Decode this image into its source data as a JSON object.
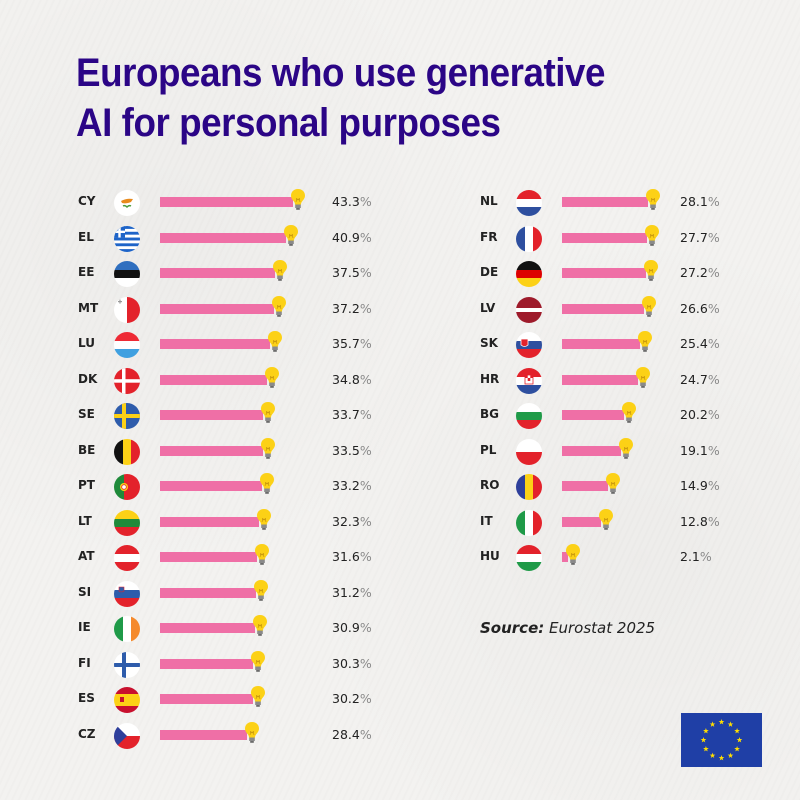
{
  "title_line1": "Europeans who use generative",
  "title_line2": "AI for personal purposes",
  "source_label": "Source:",
  "source_value": "Eurostat 2025",
  "percent_sign": "%",
  "colors": {
    "title": "#2b0586",
    "bar": "#ef6fa6",
    "bulb": "#fcd116",
    "eu_blue": "#1f3fa6",
    "eu_star": "#ffdd00"
  },
  "chart_data": {
    "type": "bar",
    "orientation": "horizontal",
    "title": "Europeans who use generative AI for personal purposes",
    "source": "Eurostat 2025",
    "unit": "%",
    "xlim": [
      0,
      45
    ],
    "grid": false,
    "columns": [
      {
        "categories": [
          "CY",
          "EL",
          "EE",
          "MT",
          "LU",
          "DK",
          "SE",
          "BE",
          "PT",
          "LT",
          "AT",
          "SI",
          "IE",
          "FI",
          "ES",
          "CZ"
        ],
        "values": [
          43.3,
          40.9,
          37.5,
          37.2,
          35.7,
          34.8,
          33.7,
          33.5,
          33.2,
          32.3,
          31.6,
          31.2,
          30.9,
          30.3,
          30.2,
          28.4
        ],
        "labels": [
          "43.3",
          "40.9",
          "37.5",
          "37.2",
          "35.7",
          "34.8",
          "33.7",
          "33.5",
          "33.2",
          "32.3",
          "31.6",
          "31.2",
          "30.9",
          "30.3",
          "30.2",
          "28.4"
        ]
      },
      {
        "categories": [
          "NL",
          "FR",
          "DE",
          "LV",
          "SK",
          "HR",
          "BG",
          "PL",
          "RO",
          "IT",
          "HU"
        ],
        "values": [
          28.1,
          27.7,
          27.2,
          26.6,
          25.4,
          24.7,
          20.2,
          19.1,
          14.9,
          12.8,
          2.1
        ],
        "labels": [
          "28.1",
          "27.7",
          "27.2",
          "26.6",
          "25.4",
          "24.7",
          "20.2",
          "19.1",
          "14.9",
          "12.8",
          "2.1"
        ]
      }
    ]
  }
}
